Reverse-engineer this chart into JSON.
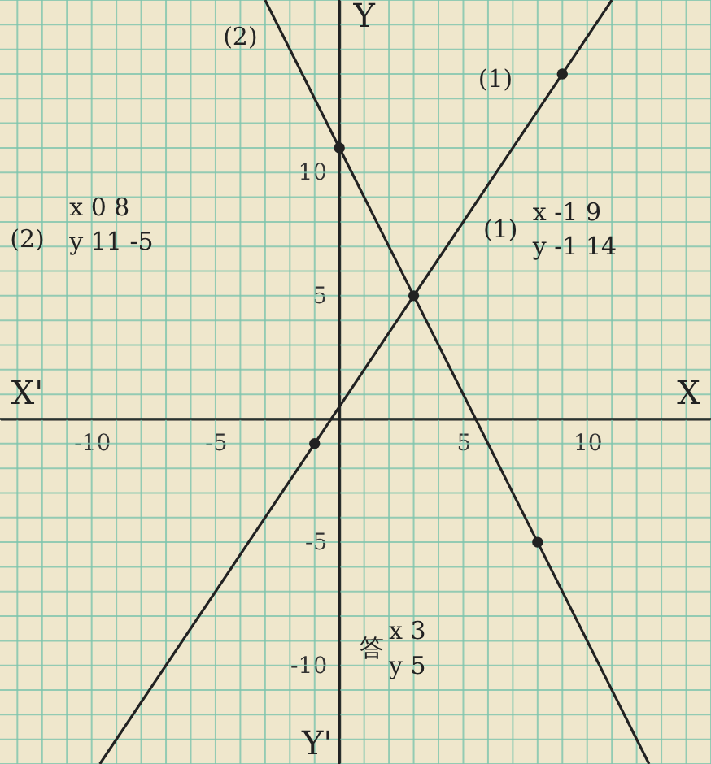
{
  "chart_data": {
    "type": "line",
    "xlabel": "X",
    "ylabel": "Y",
    "xlim": [
      -13.7,
      15
    ],
    "ylim": [
      -14,
      17
    ],
    "xticks": [
      {
        "value": -13,
        "label": null
      },
      {
        "value": -12,
        "label": null
      },
      {
        "value": -11,
        "label": null
      },
      -10,
      {
        "value": -9,
        "label": null
      },
      {
        "value": -8,
        "label": null
      },
      {
        "value": -7,
        "label": null
      },
      {
        "value": -6,
        "label": null
      },
      -5,
      {
        "value": -4,
        "label": null
      },
      {
        "value": -3,
        "label": null
      },
      {
        "value": -2,
        "label": null
      },
      {
        "value": -1,
        "label": null
      },
      {
        "value": 0,
        "label": null
      },
      {
        "value": 1,
        "label": null
      },
      {
        "value": 2,
        "label": null
      },
      {
        "value": 3,
        "label": null
      },
      {
        "value": 4,
        "label": null
      },
      5,
      {
        "value": 6,
        "label": null
      },
      {
        "value": 7,
        "label": null
      },
      {
        "value": 8,
        "label": null
      },
      {
        "value": 9,
        "label": null
      },
      10,
      {
        "value": 11,
        "label": null
      },
      {
        "value": 12,
        "label": null
      },
      {
        "value": 13,
        "label": null
      },
      {
        "value": 14,
        "label": null
      },
      {
        "value": 15,
        "label": null
      }
    ],
    "yticks": [
      {
        "value": -14,
        "label": null
      },
      {
        "value": -13,
        "label": null
      },
      {
        "value": -12,
        "label": null
      },
      {
        "value": -11,
        "label": null
      },
      -10,
      {
        "value": -9,
        "label": null
      },
      {
        "value": -8,
        "label": null
      },
      {
        "value": -7,
        "label": null
      },
      {
        "value": -6,
        "label": null
      },
      -5,
      {
        "value": -4,
        "label": null
      },
      {
        "value": -3,
        "label": null
      },
      {
        "value": -2,
        "label": null
      },
      {
        "value": -1,
        "label": null
      },
      {
        "value": 0,
        "label": null
      },
      {
        "value": 1,
        "label": null
      },
      {
        "value": 2,
        "label": null
      },
      {
        "value": 3,
        "label": null
      },
      {
        "value": 4,
        "label": null
      },
      5,
      {
        "value": 6,
        "label": null
      },
      {
        "value": 7,
        "label": null
      },
      {
        "value": 8,
        "label": null
      },
      {
        "value": 9,
        "label": null
      },
      10,
      {
        "value": 11,
        "label": null
      },
      {
        "value": 12,
        "label": null
      },
      {
        "value": 13,
        "label": null
      },
      {
        "value": 14,
        "label": null
      },
      {
        "value": 15,
        "label": null
      },
      {
        "value": 16,
        "label": null
      },
      {
        "value": 17,
        "label": null
      }
    ],
    "grid": true,
    "series": [
      {
        "name": "(1)",
        "color": "#222222",
        "x": [
          -9.67,
          -1,
          3,
          9,
          11
        ],
        "values": [
          -14,
          -1,
          5,
          14,
          17
        ]
      },
      {
        "name": "(2)",
        "color": "#222222",
        "x": [
          -3,
          0,
          3,
          8,
          12.5
        ],
        "values": [
          17,
          11,
          5,
          -5,
          -14
        ]
      },
      {
        "type": "scatter",
        "marker": "circle",
        "color": "#222222",
        "x": [
          -1,
          0,
          3,
          8,
          9
        ],
        "values": [
          -1,
          11,
          5,
          -5,
          14
        ]
      }
    ],
    "annotations": [
      "X'",
      "Y'",
      "(2)",
      "x 0 8",
      "y 11 -5",
      "(1)",
      "x -1 9",
      "y -1 14",
      "答",
      "x 3",
      "y 5"
    ]
  }
}
